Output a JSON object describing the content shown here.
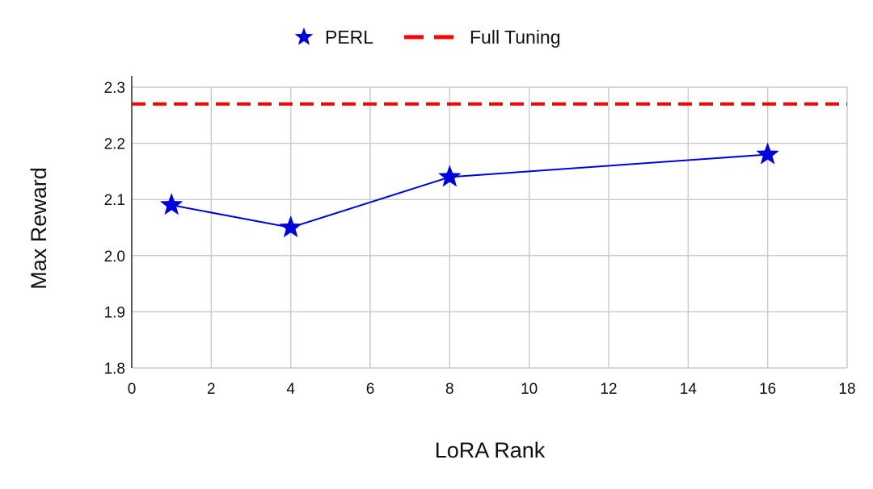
{
  "chart_data": {
    "type": "line",
    "title": "",
    "xlabel": "LoRA Rank",
    "ylabel": "Max Reward",
    "xlim": [
      0,
      18
    ],
    "ylim": [
      1.8,
      2.3
    ],
    "xticks": [
      0,
      2,
      4,
      6,
      8,
      10,
      12,
      14,
      16,
      18
    ],
    "yticks": [
      1.8,
      1.9,
      2.0,
      2.1,
      2.2,
      2.3
    ],
    "ytick_labels": [
      "1.8",
      "1.9",
      "2.0",
      "2.1",
      "2.2",
      "2.3"
    ],
    "grid": true,
    "legend_position": "top-center",
    "series": [
      {
        "name": "PERL",
        "color": "#0000dd",
        "marker": "star",
        "x": [
          1,
          4,
          8,
          16
        ],
        "y": [
          2.09,
          2.05,
          2.14,
          2.18
        ]
      }
    ],
    "reference_lines": [
      {
        "name": "Full Tuning",
        "y": 2.27,
        "color": "#ff0000",
        "style": "dashed"
      }
    ]
  }
}
